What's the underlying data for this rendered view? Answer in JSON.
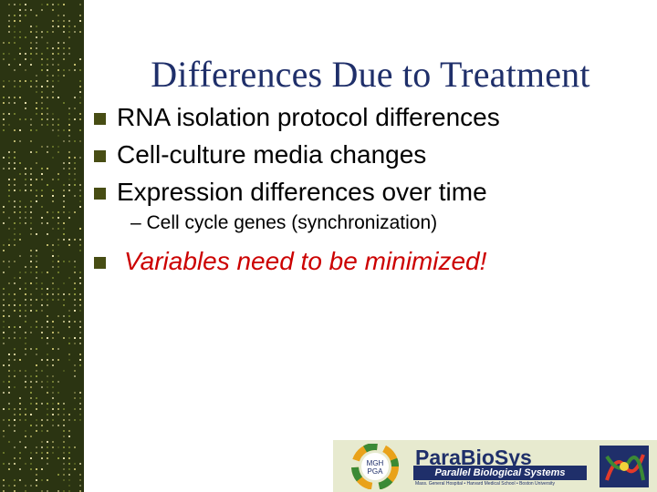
{
  "slide": {
    "title": "Differences Due to Treatment",
    "bullets": [
      "RNA isolation protocol differences",
      "Cell-culture media changes",
      "Expression differences over time"
    ],
    "sub_bullet": "– Cell cycle genes (synchronization)",
    "highlight_bullet": "Variables need to be minimized!"
  },
  "footer": {
    "circle_logo_text": [
      "MGH",
      "PGA"
    ],
    "brand": "ParaBioSys",
    "tagline": "Parallel Biological Systems",
    "affiliations": "Mass. General Hospital • Harvard Medical School • Boston University"
  },
  "colors": {
    "title": "#1f2f6a",
    "bullet": "#474d14",
    "highlight": "#cc0000",
    "sidebar": "#2b3412"
  }
}
